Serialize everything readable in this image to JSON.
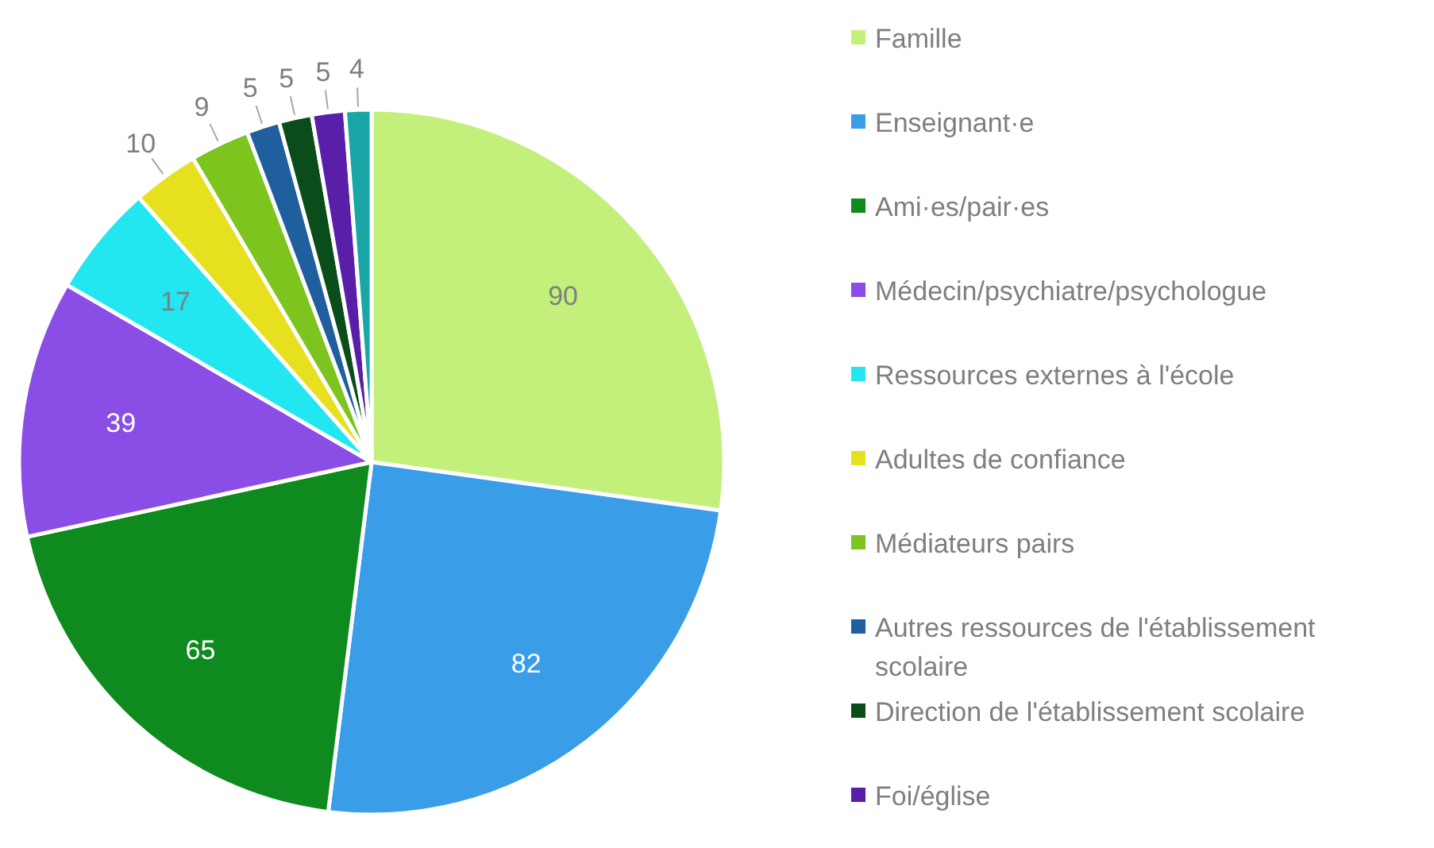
{
  "chart_data": {
    "type": "pie",
    "categories": [
      "Famille",
      "Enseignant·e",
      "Ami·es/pair·es",
      "Médecin/psychiatre/psychologue",
      "Ressources externes à l'école",
      "Adultes de confiance",
      "Médiateurs pairs",
      "Autres ressources de l'établissement scolaire",
      "Direction de l'établissement scolaire",
      "Foi/église",
      null
    ],
    "values": [
      90,
      82,
      65,
      39,
      17,
      10,
      9,
      5,
      5,
      5,
      4
    ],
    "colors": [
      "#c2f07a",
      "#3a9de8",
      "#0e8a1e",
      "#8a4de6",
      "#22e6f0",
      "#e6e01e",
      "#7ec41e",
      "#1f5f9e",
      "#0a4d1a",
      "#5a1fa8",
      "#1aa6a6"
    ],
    "data_labels": true,
    "legend": "right"
  }
}
